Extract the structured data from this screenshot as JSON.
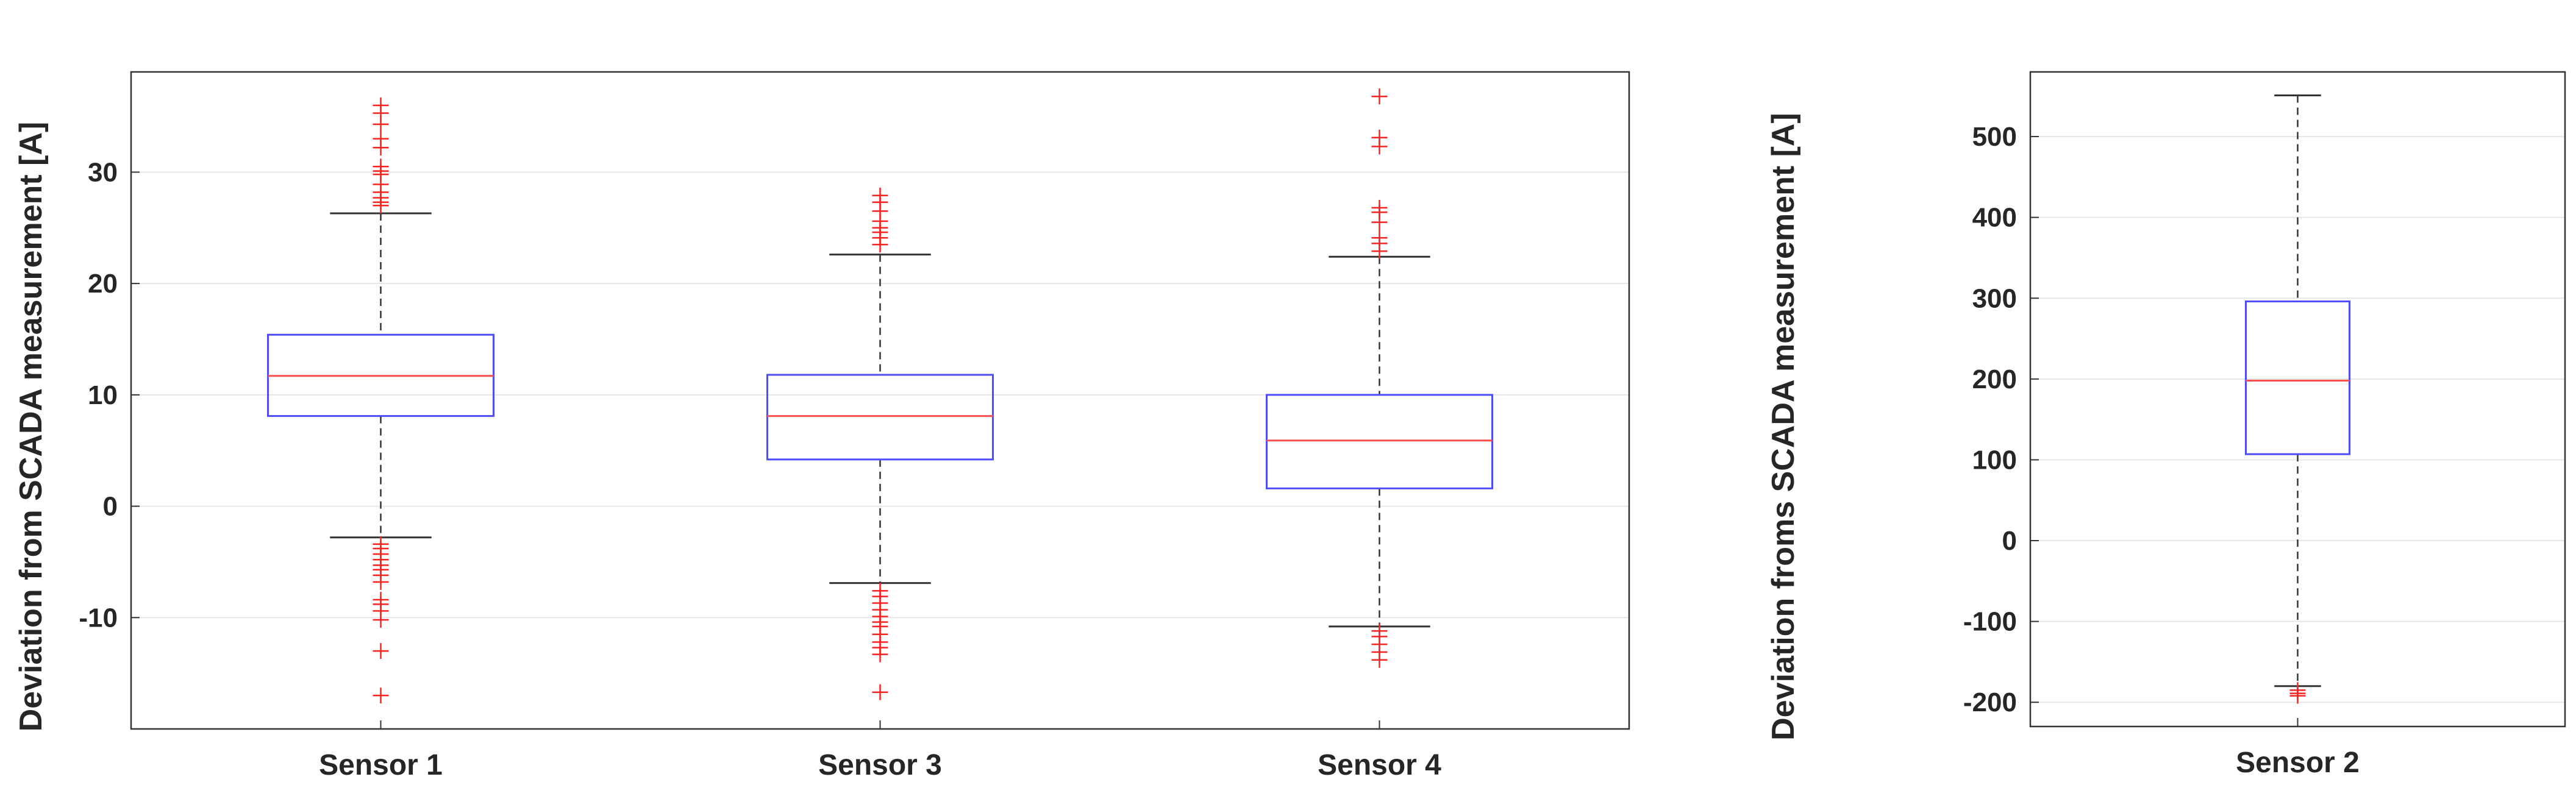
{
  "chart_data": [
    {
      "type": "box",
      "ylabel": "Deviation from SCADA measurement [A]",
      "xlabel": "",
      "ylim": [
        -20,
        39
      ],
      "yticks": [
        -10,
        0,
        10,
        20,
        30
      ],
      "grid": true,
      "categories": [
        "Sensor 1",
        "Sensor 3",
        "Sensor 4"
      ],
      "boxes": [
        {
          "name": "Sensor 1",
          "whisker_low": -2.8,
          "q1": 8.1,
          "median": 11.7,
          "q3": 15.4,
          "whisker_high": 26.3,
          "outliers": [
            36.0,
            35.3,
            34.3,
            33.0,
            32.2,
            30.5,
            30.1,
            29.8,
            28.9,
            28.2,
            27.7,
            27.3,
            27.0,
            -3.4,
            -3.8,
            -4.3,
            -4.8,
            -5.3,
            -5.7,
            -6.2,
            -6.8,
            -8.4,
            -8.8,
            -9.4,
            -10.2,
            -13.0,
            -17.0
          ]
        },
        {
          "name": "Sensor 3",
          "whisker_low": -6.9,
          "q1": 4.2,
          "median": 8.1,
          "q3": 11.8,
          "whisker_high": 22.6,
          "outliers": [
            27.9,
            27.3,
            26.5,
            25.6,
            25.0,
            24.6,
            24.1,
            23.5,
            -7.6,
            -8.1,
            -8.7,
            -9.3,
            -9.9,
            -10.4,
            -10.8,
            -11.5,
            -12.2,
            -12.7,
            -13.3,
            -16.7
          ]
        },
        {
          "name": "Sensor 4",
          "whisker_low": -10.8,
          "q1": 1.6,
          "median": 5.9,
          "q3": 10.0,
          "whisker_high": 22.4,
          "outliers": [
            36.8,
            33.1,
            32.3,
            26.8,
            26.4,
            25.5,
            24.1,
            23.6,
            22.9,
            -11.2,
            -11.7,
            -12.4,
            -13.1,
            -13.8
          ]
        }
      ]
    },
    {
      "type": "box",
      "ylabel": "Deviation froms SCADA measurement [A]",
      "xlabel": "",
      "ylim": [
        -230,
        580
      ],
      "yticks": [
        -200,
        -100,
        0,
        100,
        200,
        300,
        400,
        500
      ],
      "grid": true,
      "categories": [
        "Sensor 2"
      ],
      "boxes": [
        {
          "name": "Sensor 2",
          "whisker_low": -180,
          "q1": 107,
          "median": 198,
          "q3": 296,
          "whisker_high": 551,
          "outliers": [
            -185,
            -189,
            -192
          ]
        }
      ]
    }
  ],
  "colors": {
    "box": "#4d4dff",
    "median": "#ff4d4d",
    "outlier": "#ff2020",
    "whisker": "#333333",
    "grid": "#e6e6e6",
    "axis": "#333333"
  }
}
